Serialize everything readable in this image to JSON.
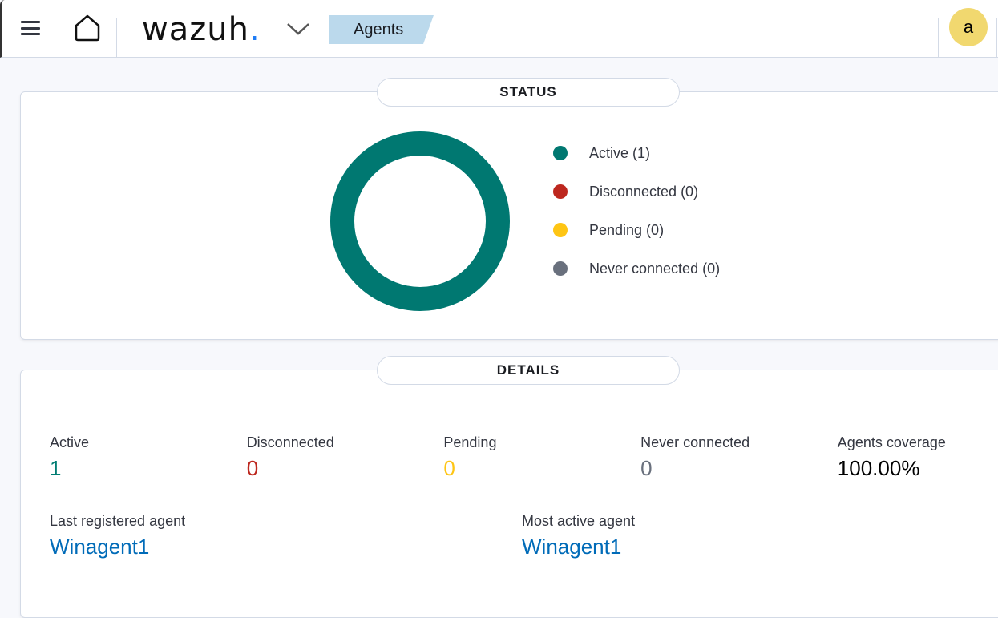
{
  "header": {
    "logo": "wazuh",
    "breadcrumb": "Agents",
    "avatar": "a"
  },
  "status": {
    "title": "STATUS",
    "legend": [
      {
        "label": "Active (1)",
        "color": "#007871"
      },
      {
        "label": "Disconnected (0)",
        "color": "#bd271e"
      },
      {
        "label": "Pending (0)",
        "color": "#fec514"
      },
      {
        "label": "Never connected (0)",
        "color": "#69707d"
      }
    ]
  },
  "chart_data": {
    "type": "pie",
    "categories": [
      "Active",
      "Disconnected",
      "Pending",
      "Never connected"
    ],
    "values": [
      1,
      0,
      0,
      0
    ],
    "colors": [
      "#007871",
      "#bd271e",
      "#fec514",
      "#69707d"
    ]
  },
  "details": {
    "title": "DETAILS",
    "stats": [
      {
        "label": "Active",
        "value": "1",
        "color": "#017d73"
      },
      {
        "label": "Disconnected",
        "value": "0",
        "color": "#bd271e"
      },
      {
        "label": "Pending",
        "value": "0",
        "color": "#fec514"
      },
      {
        "label": "Never connected",
        "value": "0",
        "color": "#69707d"
      },
      {
        "label": "Agents coverage",
        "value": "100.00%",
        "color": "#000000"
      }
    ],
    "last_registered_label": "Last registered agent",
    "last_registered": "Winagent1",
    "most_active_label": "Most active agent",
    "most_active": "Winagent1"
  }
}
